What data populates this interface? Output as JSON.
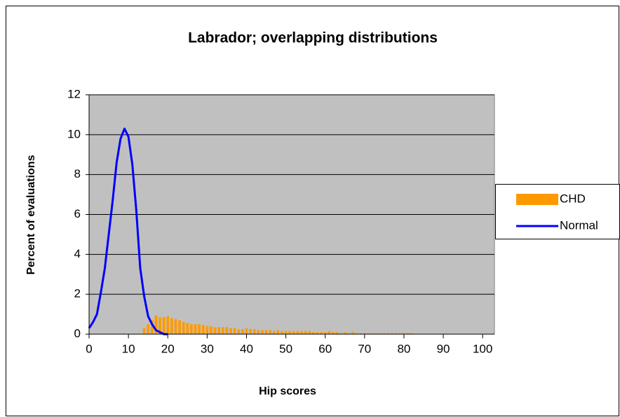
{
  "chart_data": {
    "type": "bar",
    "title": "Labrador; overlapping distributions",
    "x_label": "Hip scores",
    "y_label": "Percent of evaluations",
    "xlim": [
      0,
      103
    ],
    "xticks": [
      0,
      10,
      20,
      30,
      40,
      50,
      60,
      70,
      80,
      90,
      100
    ],
    "ylim": [
      0,
      12
    ],
    "yticks": [
      0,
      2,
      4,
      6,
      8,
      10,
      12
    ],
    "grid": true,
    "legend": "right",
    "series": [
      {
        "name": "CHD",
        "type": "bar",
        "color": "#ff9900",
        "x": [
          14,
          15,
          16,
          17,
          18,
          19,
          20,
          21,
          22,
          23,
          24,
          25,
          26,
          27,
          28,
          29,
          30,
          31,
          32,
          33,
          34,
          35,
          36,
          37,
          38,
          39,
          40,
          41,
          42,
          43,
          44,
          45,
          46,
          47,
          48,
          49,
          50,
          51,
          52,
          53,
          54,
          55,
          56,
          57,
          58,
          59,
          60,
          61,
          62,
          63,
          64,
          65,
          66,
          67,
          68,
          69,
          70,
          71,
          72,
          73,
          74,
          75,
          76,
          77,
          78,
          79,
          80,
          81,
          82
        ],
        "values": [
          0.3,
          0.5,
          0.7,
          0.95,
          0.85,
          0.85,
          0.9,
          0.8,
          0.75,
          0.7,
          0.6,
          0.55,
          0.5,
          0.5,
          0.5,
          0.45,
          0.4,
          0.4,
          0.35,
          0.35,
          0.35,
          0.35,
          0.3,
          0.3,
          0.25,
          0.25,
          0.3,
          0.25,
          0.25,
          0.2,
          0.2,
          0.2,
          0.2,
          0.15,
          0.2,
          0.15,
          0.15,
          0.15,
          0.15,
          0.15,
          0.15,
          0.15,
          0.15,
          0.1,
          0.1,
          0.1,
          0.1,
          0.15,
          0.1,
          0.1,
          0.05,
          0.1,
          0.05,
          0.1,
          0.05,
          0.05,
          0.05,
          0.05,
          0.05,
          0.05,
          0.05,
          0.05,
          0.05,
          0.05,
          0.05,
          0.05,
          0.05,
          0.05,
          0.05
        ]
      },
      {
        "name": "Normal",
        "type": "line",
        "color": "#0000ff",
        "x": [
          0,
          1,
          2,
          3,
          4,
          5,
          6,
          7,
          8,
          9,
          10,
          11,
          12,
          13,
          14,
          15,
          16,
          17,
          18,
          19,
          20
        ],
        "values": [
          0.3,
          0.6,
          1.0,
          2.1,
          3.3,
          5.0,
          6.7,
          8.6,
          9.8,
          10.3,
          9.9,
          8.5,
          6.2,
          3.3,
          1.9,
          0.9,
          0.5,
          0.2,
          0.1,
          0,
          0
        ]
      }
    ]
  }
}
